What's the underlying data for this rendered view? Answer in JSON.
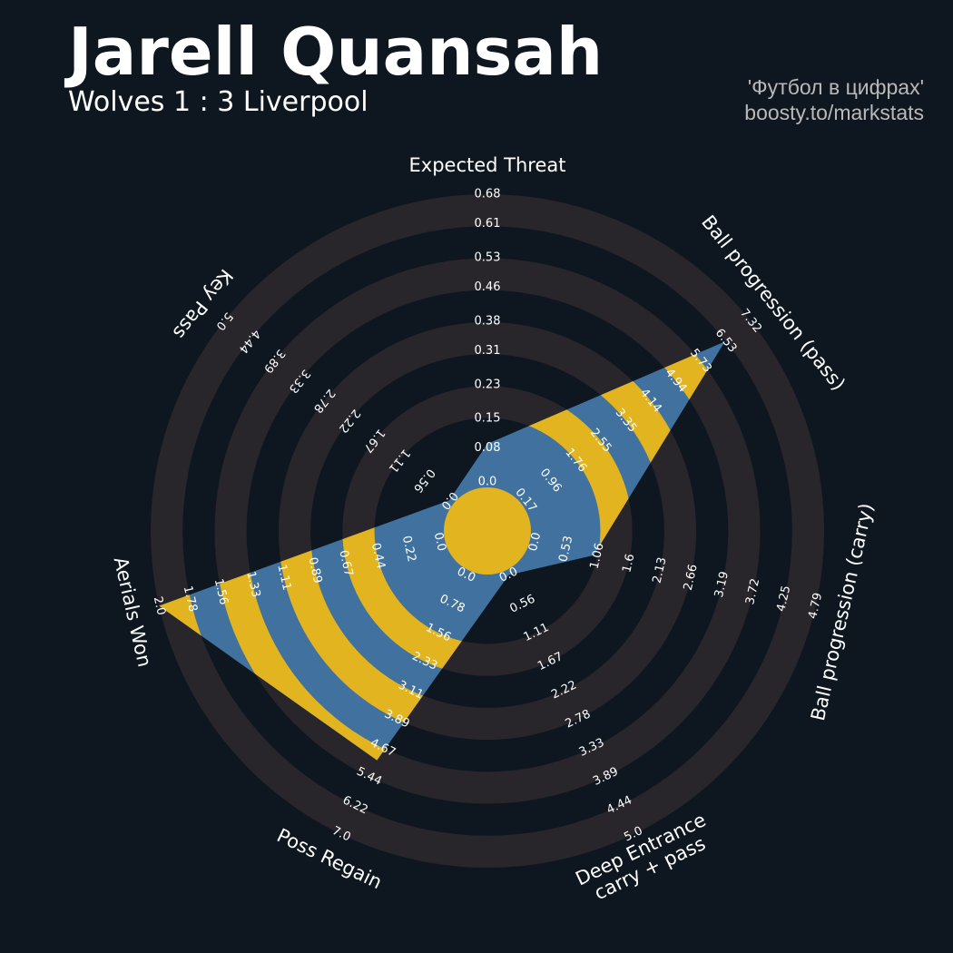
{
  "chart_data": {
    "type": "radar",
    "title": "Jarell Quansah",
    "subtitle": "Wolves 1 : 3 Liverpool",
    "credits": [
      "'Футбол в цифрах'",
      "boosty.to/markstats"
    ],
    "categories": [
      "Expected Threat",
      "Ball progression (pass)",
      "Ball progression (carry)",
      "Deep Entrance\ncarry + pass",
      "Poss Regain",
      "Aerials Won",
      "Key Pass"
    ],
    "values": [
      0.09,
      6.5,
      1.0,
      0,
      5.0,
      2.0,
      0
    ],
    "lims": [
      [
        0,
        0.68
      ],
      [
        0.17,
        7.32
      ],
      [
        0,
        4.79
      ],
      [
        0,
        5
      ],
      [
        0,
        7
      ],
      [
        0,
        2
      ],
      [
        0,
        5
      ]
    ],
    "ticks": [
      [
        {
          "value": 0,
          "label": "0.0"
        },
        0.08,
        0.15,
        0.23,
        0.31,
        0.38,
        0.46,
        0.53,
        0.61,
        0.68
      ],
      [
        0.17,
        0.96,
        1.76,
        2.55,
        3.35,
        4.14,
        4.94,
        5.73,
        6.53,
        7.32
      ],
      [
        {
          "value": 0,
          "label": "0.0"
        },
        0.53,
        1.06,
        1.6,
        2.13,
        2.66,
        3.19,
        3.72,
        4.25,
        4.79
      ],
      [
        {
          "value": 0,
          "label": "0.0"
        },
        0.56,
        1.11,
        1.67,
        2.22,
        2.78,
        3.33,
        3.89,
        4.44,
        {
          "value": 5,
          "label": "5.0"
        }
      ],
      [
        {
          "value": 0,
          "label": "0.0"
        },
        0.78,
        1.56,
        2.33,
        3.11,
        3.89,
        4.67,
        5.44,
        6.22,
        {
          "value": 7,
          "label": "7.0"
        }
      ],
      [
        {
          "value": 0,
          "label": "0.0"
        },
        0.22,
        0.44,
        0.67,
        0.89,
        1.11,
        1.33,
        1.56,
        1.78,
        {
          "value": 2,
          "label": "2.0"
        }
      ],
      [
        {
          "value": 0,
          "label": "0.0"
        },
        0.56,
        1.11,
        1.67,
        2.22,
        2.78,
        3.33,
        3.89,
        4.44,
        {
          "value": 5,
          "label": "5.0"
        }
      ]
    ],
    "colors": {
      "background": "#0e1720",
      "ring": "#28252b",
      "polygon": "#41729f",
      "highlight": "#e2b41f"
    }
  }
}
